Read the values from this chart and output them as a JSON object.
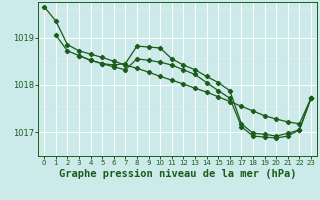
{
  "title": "Graphe pression niveau de la mer (hPa)",
  "bg_color": "#cceaea",
  "line_color": "#1a5c1a",
  "grid_color": "#ffffff",
  "ylim": [
    1016.5,
    1019.75
  ],
  "xlim": [
    -0.5,
    23.5
  ],
  "yticks": [
    1017,
    1018,
    1019
  ],
  "xticks": [
    0,
    1,
    2,
    3,
    4,
    5,
    6,
    7,
    8,
    9,
    10,
    11,
    12,
    13,
    14,
    15,
    16,
    17,
    18,
    19,
    20,
    21,
    22,
    23
  ],
  "series1_x": [
    0,
    1,
    2,
    3,
    4,
    5,
    6,
    7,
    8,
    9,
    10,
    11,
    12,
    13,
    14,
    15,
    16,
    17,
    18,
    19,
    20,
    21,
    22,
    23
  ],
  "series1_y": [
    1019.65,
    1019.35,
    1018.85,
    1018.72,
    1018.65,
    1018.58,
    1018.5,
    1018.42,
    1018.35,
    1018.27,
    1018.18,
    1018.1,
    1018.02,
    1017.93,
    1017.85,
    1017.75,
    1017.65,
    1017.55,
    1017.45,
    1017.35,
    1017.28,
    1017.22,
    1017.18,
    1017.72
  ],
  "series2_x": [
    1,
    2,
    3,
    4,
    5,
    6,
    7,
    8,
    9,
    10,
    11,
    12,
    13,
    14,
    15,
    16,
    17,
    18,
    19,
    20,
    21,
    22,
    23
  ],
  "series2_y": [
    1019.05,
    1018.72,
    1018.62,
    1018.52,
    1018.45,
    1018.42,
    1018.45,
    1018.82,
    1018.8,
    1018.78,
    1018.55,
    1018.42,
    1018.32,
    1018.18,
    1018.05,
    1017.88,
    1017.18,
    1016.98,
    1016.96,
    1016.92,
    1016.98,
    1017.05,
    1017.72
  ],
  "series3_x": [
    3,
    4,
    5,
    6,
    7,
    8,
    9,
    10,
    11,
    12,
    13,
    14,
    15,
    16,
    17,
    18,
    19,
    20,
    21,
    22,
    23
  ],
  "series3_y": [
    1018.62,
    1018.52,
    1018.45,
    1018.38,
    1018.32,
    1018.55,
    1018.52,
    1018.48,
    1018.42,
    1018.32,
    1018.22,
    1018.05,
    1017.88,
    1017.72,
    1017.12,
    1016.92,
    1016.9,
    1016.88,
    1016.92,
    1017.05,
    1017.72
  ],
  "title_fontsize": 7.5,
  "tick_fontsize": 6.0,
  "marker": "D",
  "markersize": 2.2,
  "linewidth": 0.9
}
